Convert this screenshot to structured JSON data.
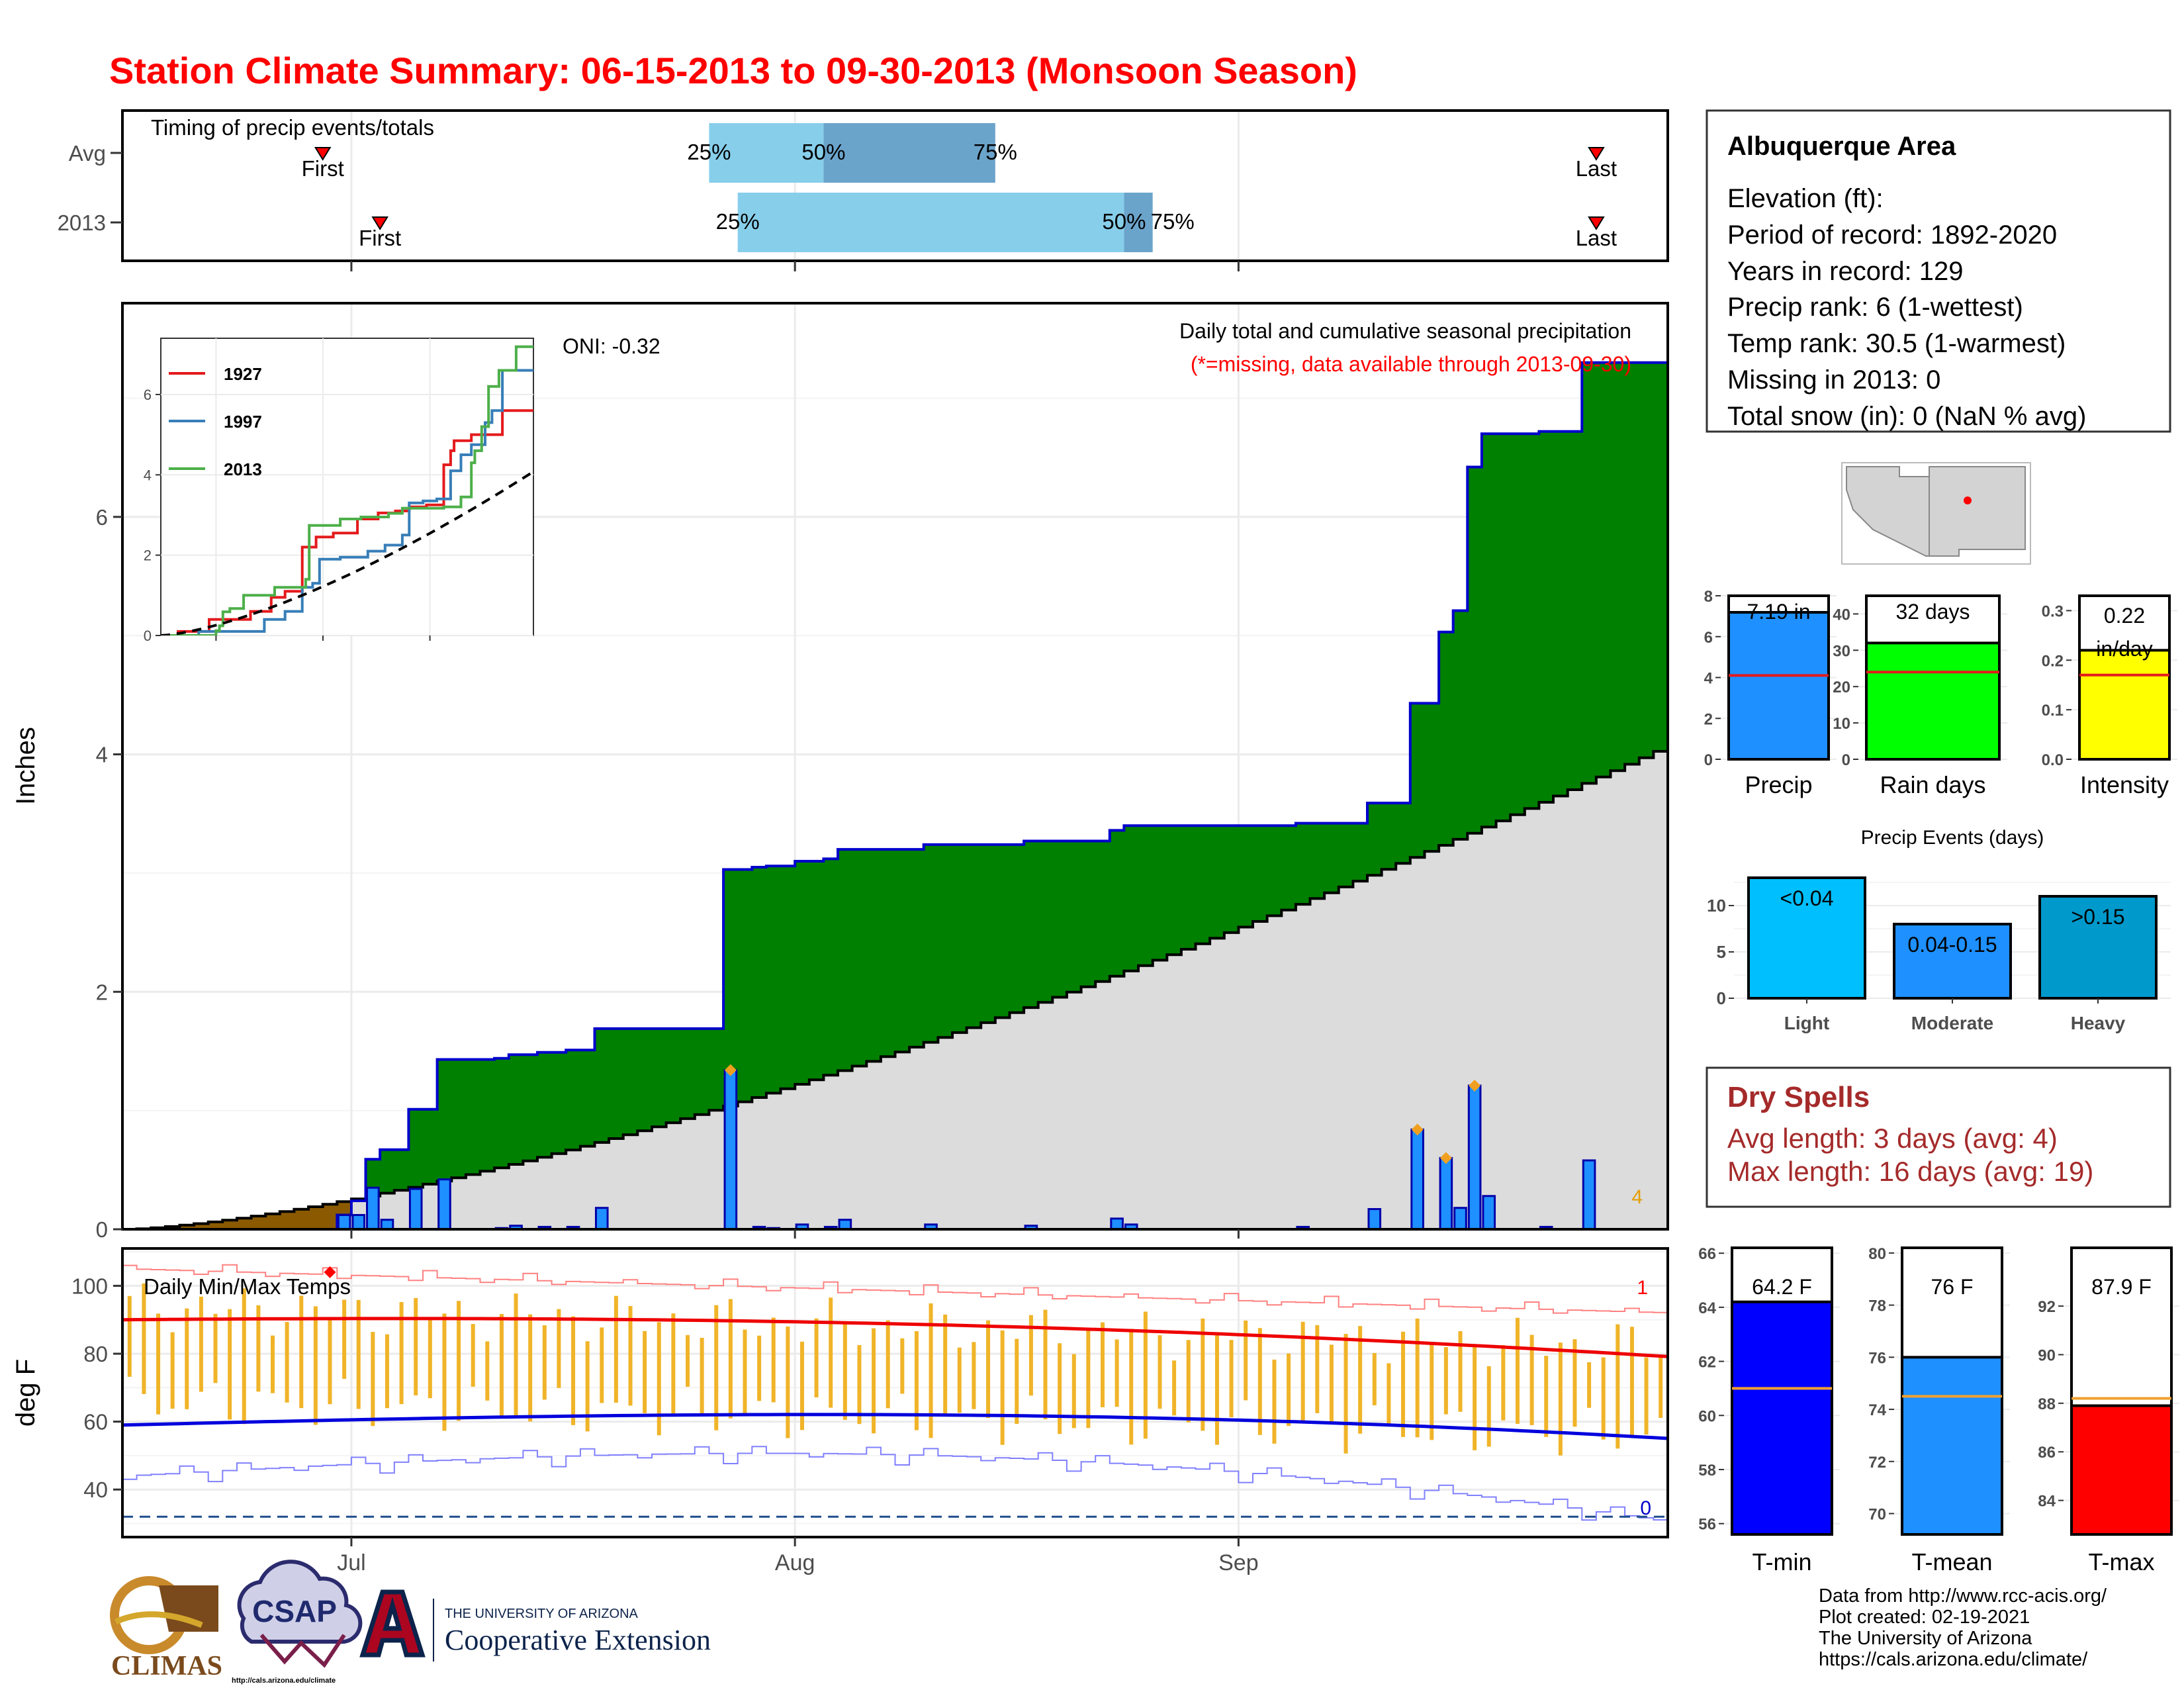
{
  "title": "Station Climate Summary: 06-15-2013 to 09-30-2013 (Monsoon Season)",
  "timing": {
    "title": "Timing of precip events/totals",
    "rows": [
      {
        "label": "Avg",
        "first_date": "2013-06-29",
        "last_date": "2013-09-26",
        "p25_date": "2013-07-26",
        "p50_date": "2013-08-03",
        "p75_date": "2013-08-15",
        "first_label": "First",
        "last_label": "Last",
        "p25_label": "25%",
        "p50_label": "50%",
        "p75_label": "75%"
      },
      {
        "label": "2013",
        "first_date": "2013-07-03",
        "last_date": "2013-09-26",
        "p25_date": "2013-07-28",
        "p50_date": "2013-08-24",
        "p75_date": "2013-08-26",
        "first_label": "First",
        "last_label": "Last",
        "p25_label": "25%",
        "p50_label": "50%",
        "p75_label": "75%"
      }
    ]
  },
  "main_chart": {
    "ylabel": "Inches",
    "title": "Daily total and cumulative seasonal precipitation",
    "subtitle": "(*=missing, data available through 2013-09-30)",
    "oni": "ONI: -0.32",
    "corner_count": "4"
  },
  "inset": {
    "legend": [
      {
        "name": "1927",
        "color": "#e41a1c"
      },
      {
        "name": "1997",
        "color": "#377eb8"
      },
      {
        "name": "2013",
        "color": "#4daf4a"
      }
    ],
    "x_ticks": [
      "Jul",
      "Aug",
      "Sep"
    ],
    "y_ticks": [
      "0",
      "2",
      "4",
      "6"
    ]
  },
  "temp_chart": {
    "title": "Daily Min/Max Temps",
    "ylabel": "deg F",
    "x_ticks": [
      "Jul",
      "Aug",
      "Sep"
    ],
    "y_ticks": [
      "40",
      "60",
      "80",
      "100"
    ],
    "count_above": "1",
    "count_below": "0"
  },
  "station": {
    "name": "Albuquerque Area",
    "lines": [
      "Elevation (ft):",
      "Period of record: 1892-2020",
      "Years in record: 129",
      "Precip rank: 6 (1-wettest)",
      "Temp rank: 30.5 (1-warmest)",
      "Missing in 2013: 0",
      "Total snow (in): 0 (NaN % avg)"
    ]
  },
  "dry_spells": {
    "title": "Dry Spells",
    "avg_line": "Avg length: 3 days (avg: 4)",
    "max_line": "Max length: 16 days (avg: 19)"
  },
  "precip_events_title": "Precip Events (days)",
  "footer": {
    "lines": [
      "Data from http://www.rcc-acis.org/",
      "Plot created: 02-19-2021",
      "The University of Arizona",
      "https://cals.arizona.edu/climate/"
    ],
    "climas": "CLIMAS",
    "csap": "CSAP",
    "csap_url": "http://cals.arizona.edu/climate",
    "ua_small": "THE UNIVERSITY OF ARIZONA",
    "ua_big": "Cooperative Extension"
  },
  "chart_data": [
    {
      "type": "area",
      "name": "cumulative_precip",
      "x_start": "2013-06-15",
      "x_end": "2013-09-30",
      "xlabel": "",
      "ylabel": "Inches",
      "ylim": [
        0,
        7.8
      ],
      "y_ticks": [
        0,
        2,
        4,
        6
      ],
      "x_ticks": [
        "Jul",
        "Aug",
        "Sep"
      ],
      "total_2013": 7.19,
      "avg_total": 4.08,
      "daily_2013": [
        {
          "date": "2013-06-30",
          "value": 0.12
        },
        {
          "date": "2013-07-01",
          "value": 0.12
        },
        {
          "date": "2013-07-02",
          "value": 0.35
        },
        {
          "date": "2013-07-03",
          "value": 0.08
        },
        {
          "date": "2013-07-05",
          "value": 0.34
        },
        {
          "date": "2013-07-07",
          "value": 0.42
        },
        {
          "date": "2013-07-11",
          "value": 0.01
        },
        {
          "date": "2013-07-12",
          "value": 0.03
        },
        {
          "date": "2013-07-14",
          "value": 0.02
        },
        {
          "date": "2013-07-16",
          "value": 0.02
        },
        {
          "date": "2013-07-18",
          "value": 0.18
        },
        {
          "date": "2013-07-27",
          "value": 1.34
        },
        {
          "date": "2013-07-29",
          "value": 0.02
        },
        {
          "date": "2013-07-30",
          "value": 0.01
        },
        {
          "date": "2013-08-01",
          "value": 0.04
        },
        {
          "date": "2013-08-03",
          "value": 0.02
        },
        {
          "date": "2013-08-04",
          "value": 0.08
        },
        {
          "date": "2013-08-10",
          "value": 0.04
        },
        {
          "date": "2013-08-17",
          "value": 0.03
        },
        {
          "date": "2013-08-23",
          "value": 0.09
        },
        {
          "date": "2013-08-24",
          "value": 0.04
        },
        {
          "date": "2013-09-05",
          "value": 0.02
        },
        {
          "date": "2013-09-10",
          "value": 0.17
        },
        {
          "date": "2013-09-13",
          "value": 0.84
        },
        {
          "date": "2013-09-15",
          "value": 0.6
        },
        {
          "date": "2013-09-16",
          "value": 0.18
        },
        {
          "date": "2013-09-17",
          "value": 1.21
        },
        {
          "date": "2013-09-18",
          "value": 0.28
        },
        {
          "date": "2013-09-22",
          "value": 0.02
        },
        {
          "date": "2013-09-25",
          "value": 0.58
        }
      ],
      "record_markers": [
        {
          "date": "2013-07-27",
          "value": 1.34
        },
        {
          "date": "2013-09-13",
          "value": 0.84
        },
        {
          "date": "2013-09-15",
          "value": 0.6
        },
        {
          "date": "2013-09-17",
          "value": 1.21
        }
      ],
      "series": [
        {
          "name": "2013 cumulative",
          "color": "#0000cc"
        },
        {
          "name": "average cumulative",
          "color": "#000000"
        }
      ]
    },
    {
      "type": "line",
      "name": "inset_cumulative",
      "x_start": "2013-06-15",
      "x_end": "2013-09-30",
      "ylim": [
        0,
        7.4
      ],
      "y_ticks": [
        0,
        2,
        4,
        6
      ],
      "series": [
        {
          "name": "1927",
          "color": "#e41a1c",
          "values": [
            [
              0,
              0
            ],
            [
              5,
              0.1
            ],
            [
              14,
              0.4
            ],
            [
              26,
              0.6
            ],
            [
              32,
              0.95
            ],
            [
              36,
              1.1
            ],
            [
              41,
              2.2
            ],
            [
              45,
              2.45
            ],
            [
              50,
              2.55
            ],
            [
              57,
              2.9
            ],
            [
              63,
              3.05
            ],
            [
              68,
              3.1
            ],
            [
              72,
              3.2
            ],
            [
              77,
              3.25
            ],
            [
              82,
              4.25
            ],
            [
              84,
              4.6
            ],
            [
              85,
              4.85
            ],
            [
              90,
              5
            ],
            [
              99,
              5.6
            ],
            [
              108,
              5.6
            ]
          ]
        },
        {
          "name": "1997",
          "color": "#377eb8",
          "values": [
            [
              0,
              0
            ],
            [
              11,
              0.1
            ],
            [
              21,
              0.1
            ],
            [
              30,
              0.4
            ],
            [
              36,
              0.6
            ],
            [
              41,
              1.2
            ],
            [
              44,
              1.3
            ],
            [
              46,
              1.9
            ],
            [
              52,
              1.95
            ],
            [
              60,
              2.1
            ],
            [
              65,
              2.25
            ],
            [
              70,
              2.5
            ],
            [
              72,
              3.3
            ],
            [
              76,
              3.35
            ],
            [
              80,
              3.4
            ],
            [
              84,
              4.1
            ],
            [
              87,
              4.5
            ],
            [
              90,
              4.75
            ],
            [
              94,
              5.3
            ],
            [
              96,
              5.6
            ],
            [
              99,
              6.6
            ],
            [
              108,
              6.6
            ]
          ]
        },
        {
          "name": "2013",
          "color": "#4daf4a",
          "values": [
            [
              0,
              0
            ],
            [
              15,
              0
            ],
            [
              16,
              0.12
            ],
            [
              17,
              0.24
            ],
            [
              18,
              0.59
            ],
            [
              20,
              0.67
            ],
            [
              24,
              1.0
            ],
            [
              33,
              1.2
            ],
            [
              42,
              1.4
            ],
            [
              43,
              2.74
            ],
            [
              52,
              2.9
            ],
            [
              58,
              2.95
            ],
            [
              66,
              3.04
            ],
            [
              70,
              3.17
            ],
            [
              82,
              3.2
            ],
            [
              87,
              3.45
            ],
            [
              90,
              4.3
            ],
            [
              91,
              4.6
            ],
            [
              93,
              5.2
            ],
            [
              95,
              6.2
            ],
            [
              98,
              6.6
            ],
            [
              103,
              7.19
            ],
            [
              108,
              7.19
            ]
          ]
        },
        {
          "name": "average",
          "color": "#000000",
          "values": [
            [
              0,
              0
            ],
            [
              108,
              4.08
            ]
          ]
        }
      ]
    },
    {
      "type": "bar",
      "name": "totals",
      "categories": [
        "Precip",
        "Rain days",
        "Intensity"
      ],
      "values": [
        7.19,
        32,
        0.22
      ],
      "averages": [
        4.1,
        24,
        0.17
      ],
      "labels": [
        "7.19 in",
        "32 days",
        "0.22 in/day"
      ],
      "colors": [
        "#1e90ff",
        "#00ff00",
        "#ffff00"
      ],
      "ylims": [
        [
          0,
          8
        ],
        [
          0,
          45
        ],
        [
          0,
          0.33
        ]
      ],
      "y_ticks": [
        [
          0,
          2,
          4,
          6,
          8
        ],
        [
          0,
          10,
          20,
          30,
          40
        ],
        [
          0.0,
          0.1,
          0.2,
          0.3
        ]
      ]
    },
    {
      "type": "bar",
      "name": "precip_events",
      "title": "Precip Events (days)",
      "categories": [
        "Light",
        "Moderate",
        "Heavy"
      ],
      "values": [
        13,
        8,
        11
      ],
      "labels": [
        "<0.04",
        "0.04-0.15",
        ">0.15"
      ],
      "colors": [
        "#00bfff",
        "#1e90ff",
        "#0099cc"
      ],
      "ylim": [
        0,
        14.5
      ],
      "y_ticks": [
        0,
        5,
        10
      ]
    },
    {
      "type": "bar",
      "name": "temperatures",
      "categories": [
        "T-min",
        "T-mean",
        "T-max"
      ],
      "values": [
        64.2,
        76,
        87.9
      ],
      "averages": [
        61,
        74.5,
        88.2
      ],
      "labels": [
        "64.2 F",
        "76 F",
        "87.9 F"
      ],
      "colors": [
        "#0000ff",
        "#1e90ff",
        "#ff0000"
      ],
      "ylims": [
        [
          55.6,
          66.2
        ],
        [
          69.2,
          80.2
        ],
        [
          82.6,
          94.4
        ]
      ],
      "y_ticks": [
        [
          56,
          58,
          60,
          62,
          64,
          66
        ],
        [
          70,
          72,
          74,
          76,
          78,
          80
        ],
        [
          84,
          86,
          88,
          90,
          92
        ]
      ]
    },
    {
      "type": "line",
      "name": "daily_temps",
      "title": "Daily Min/Max Temps",
      "ylabel": "deg F",
      "ylim": [
        26,
        111
      ],
      "y_ticks": [
        40,
        60,
        80,
        100
      ],
      "x_ticks": [
        "Jul",
        "Aug",
        "Sep"
      ],
      "freeze_line": 32,
      "record_high_marker": {
        "date": "2013-06-29",
        "value": 104
      },
      "avg_max": {
        "start": 90,
        "end": 79
      },
      "avg_min": {
        "start": 59,
        "end": 51
      }
    }
  ]
}
